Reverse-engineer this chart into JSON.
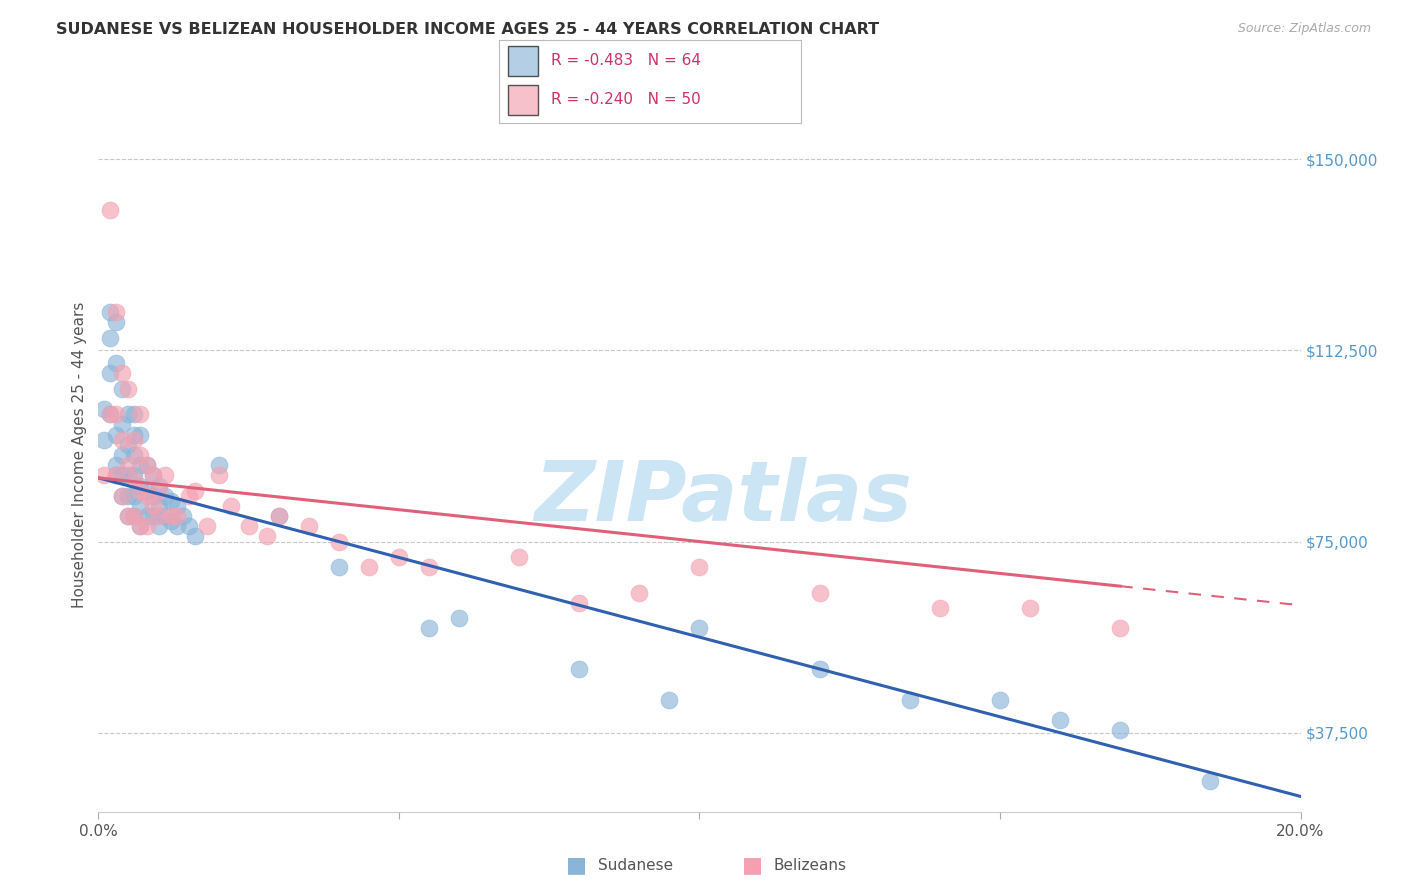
{
  "title": "SUDANESE VS BELIZEAN HOUSEHOLDER INCOME AGES 25 - 44 YEARS CORRELATION CHART",
  "source": "Source: ZipAtlas.com",
  "ylabel": "Householder Income Ages 25 - 44 years",
  "xlim": [
    0.0,
    0.2
  ],
  "ylim": [
    22000,
    162000
  ],
  "yticks": [
    37500,
    75000,
    112500,
    150000
  ],
  "ytick_labels": [
    "$37,500",
    "$75,000",
    "$112,500",
    "$150,000"
  ],
  "xticks": [
    0.0,
    0.05,
    0.1,
    0.15,
    0.2
  ],
  "xtick_labels": [
    "0.0%",
    "",
    "",
    "",
    "20.0%"
  ],
  "sudanese_color": "#8ab4d8",
  "belizean_color": "#f4a0b0",
  "sudanese_line_color": "#3060b0",
  "belizean_line_color": "#e0607a",
  "sudanese_R": "-0.483",
  "sudanese_N": "64",
  "belizean_R": "-0.240",
  "belizean_N": "50",
  "sudanese_label": "Sudanese",
  "belizean_label": "Belizeans",
  "background_color": "#ffffff",
  "grid_color": "#c8c8c8",
  "ytick_color": "#5599cc",
  "legend_text_color": "#cc3366",
  "legend_box_color": "#dddddd",
  "watermark_color": "#cce5f5",
  "sudanese_x": [
    0.001,
    0.001,
    0.002,
    0.002,
    0.002,
    0.002,
    0.003,
    0.003,
    0.003,
    0.003,
    0.003,
    0.004,
    0.004,
    0.004,
    0.004,
    0.004,
    0.005,
    0.005,
    0.005,
    0.005,
    0.005,
    0.006,
    0.006,
    0.006,
    0.006,
    0.006,
    0.006,
    0.007,
    0.007,
    0.007,
    0.007,
    0.007,
    0.008,
    0.008,
    0.008,
    0.009,
    0.009,
    0.009,
    0.01,
    0.01,
    0.01,
    0.011,
    0.011,
    0.012,
    0.012,
    0.013,
    0.013,
    0.014,
    0.015,
    0.016,
    0.02,
    0.03,
    0.04,
    0.055,
    0.06,
    0.08,
    0.095,
    0.1,
    0.12,
    0.135,
    0.15,
    0.16,
    0.17,
    0.185
  ],
  "sudanese_y": [
    101000,
    95000,
    120000,
    115000,
    108000,
    100000,
    118000,
    110000,
    96000,
    90000,
    88000,
    105000,
    98000,
    92000,
    88000,
    84000,
    100000,
    94000,
    88000,
    84000,
    80000,
    100000,
    96000,
    92000,
    88000,
    84000,
    80000,
    96000,
    90000,
    86000,
    82000,
    78000,
    90000,
    85000,
    80000,
    88000,
    84000,
    80000,
    86000,
    82000,
    78000,
    84000,
    80000,
    83000,
    79000,
    82000,
    78000,
    80000,
    78000,
    76000,
    90000,
    80000,
    70000,
    58000,
    60000,
    50000,
    44000,
    58000,
    50000,
    44000,
    44000,
    40000,
    38000,
    28000
  ],
  "belizean_x": [
    0.001,
    0.002,
    0.002,
    0.003,
    0.003,
    0.003,
    0.004,
    0.004,
    0.004,
    0.005,
    0.005,
    0.005,
    0.006,
    0.006,
    0.006,
    0.007,
    0.007,
    0.007,
    0.007,
    0.008,
    0.008,
    0.008,
    0.009,
    0.009,
    0.01,
    0.01,
    0.011,
    0.012,
    0.013,
    0.015,
    0.016,
    0.018,
    0.02,
    0.022,
    0.025,
    0.028,
    0.03,
    0.035,
    0.04,
    0.045,
    0.05,
    0.055,
    0.07,
    0.08,
    0.09,
    0.1,
    0.12,
    0.14,
    0.155,
    0.17
  ],
  "belizean_y": [
    88000,
    140000,
    100000,
    120000,
    100000,
    88000,
    108000,
    95000,
    84000,
    105000,
    90000,
    80000,
    95000,
    87000,
    80000,
    100000,
    92000,
    85000,
    78000,
    90000,
    84000,
    78000,
    88000,
    82000,
    85000,
    80000,
    88000,
    80000,
    80000,
    84000,
    85000,
    78000,
    88000,
    82000,
    78000,
    76000,
    80000,
    78000,
    75000,
    70000,
    72000,
    70000,
    72000,
    63000,
    65000,
    70000,
    65000,
    62000,
    62000,
    58000
  ]
}
